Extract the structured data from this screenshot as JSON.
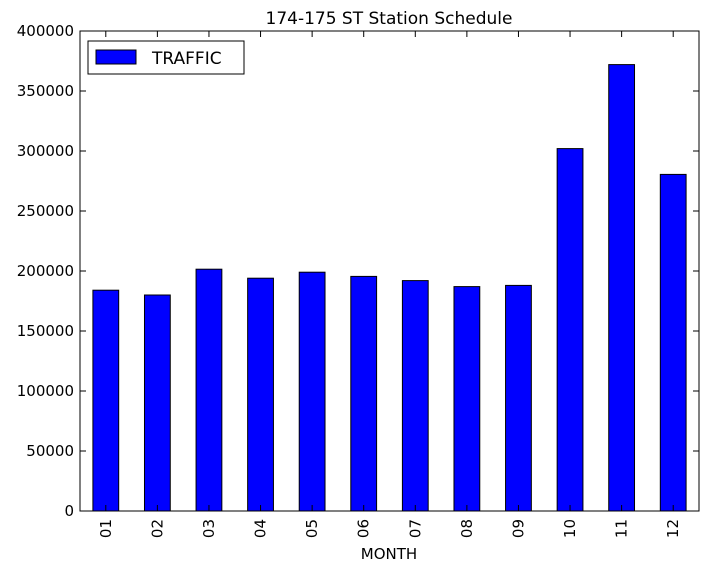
{
  "chart_data": {
    "type": "bar",
    "title": "174-175 ST Station Schedule",
    "xlabel": "MONTH",
    "ylabel": "",
    "categories": [
      "01",
      "02",
      "03",
      "04",
      "05",
      "06",
      "07",
      "08",
      "09",
      "10",
      "11",
      "12"
    ],
    "series": [
      {
        "name": "TRAFFIC",
        "color": "#0000ff",
        "values": [
          184000,
          180000,
          201500,
          194000,
          199000,
          195500,
          192000,
          187000,
          188000,
          302000,
          372000,
          280500
        ]
      }
    ],
    "ylim": [
      0,
      400000
    ],
    "yticks": [
      0,
      50000,
      100000,
      150000,
      200000,
      250000,
      300000,
      350000,
      400000
    ],
    "grid": false,
    "legend_position": "top-left"
  }
}
